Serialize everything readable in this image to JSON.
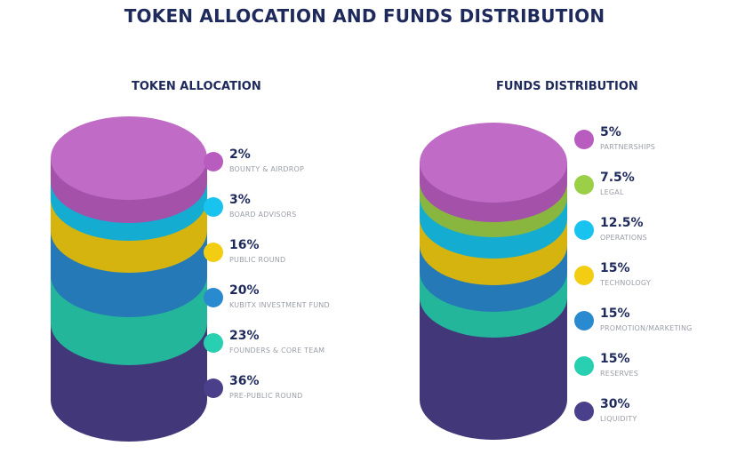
{
  "title": "TOKEN ALLOCATION AND FUNDS DISTRIBUTION",
  "chart_data": [
    {
      "type": "stacked-cylinder",
      "title": "TOKEN ALLOCATION",
      "unit": "%",
      "items": [
        {
          "value": "2%",
          "num": 2,
          "label": "BOUNTY & AIRDROP",
          "color": "#b95cc0"
        },
        {
          "value": "3%",
          "num": 3,
          "label": "BOARD ADVISORS",
          "color": "#18c3ef"
        },
        {
          "value": "16%",
          "num": 16,
          "label": "PUBLIC ROUND",
          "color": "#f2cd12"
        },
        {
          "value": "20%",
          "num": 20,
          "label": "KUBITX INVESTMENT FUND",
          "color": "#2a8ad0"
        },
        {
          "value": "23%",
          "num": 23,
          "label": "FOUNDERS & CORE TEAM",
          "color": "#28cfb0"
        },
        {
          "value": "36%",
          "num": 36,
          "label": "PRE-PUBLIC ROUND",
          "color": "#4a3f8a"
        }
      ]
    },
    {
      "type": "stacked-cylinder",
      "title": "FUNDS DISTRIBUTION",
      "unit": "%",
      "items": [
        {
          "value": "5%",
          "num": 5,
          "label": "PARTNERSHIPS",
          "color": "#b95cc0"
        },
        {
          "value": "7.5%",
          "num": 7.5,
          "label": "LEGAL",
          "color": "#9ccf48"
        },
        {
          "value": "12.5%",
          "num": 12.5,
          "label": "OPERATIONS",
          "color": "#18c3ef"
        },
        {
          "value": "15%",
          "num": 15,
          "label": "TECHNOLOGY",
          "color": "#f2cd12"
        },
        {
          "value": "15%",
          "num": 15,
          "label": "PROMOTION/MARKETING",
          "color": "#2a8ad0"
        },
        {
          "value": "15%",
          "num": 15,
          "label": "RESERVES",
          "color": "#28cfb0"
        },
        {
          "value": "30%",
          "num": 30,
          "label": "LIQUIDITY",
          "color": "#4a3f8a"
        }
      ]
    }
  ]
}
